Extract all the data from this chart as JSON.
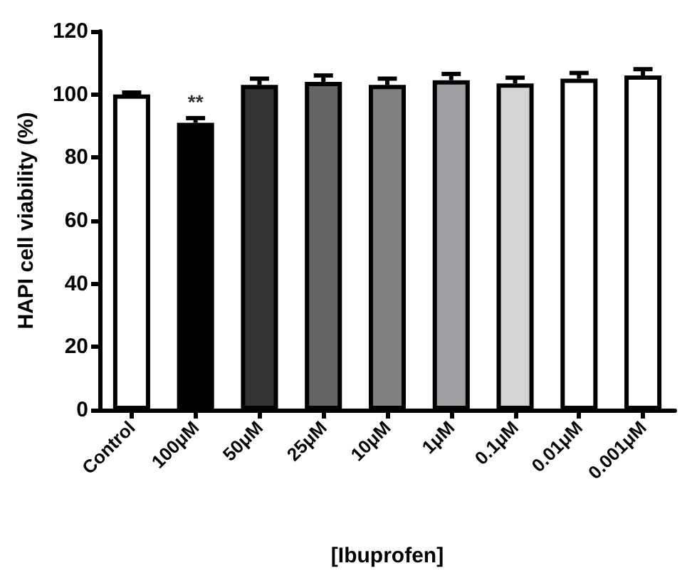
{
  "chart_data": {
    "type": "bar",
    "xlabel": "[Ibuprofen]",
    "ylabel": "HAPI cell viability (%)",
    "categories": [
      "Control",
      "100μM",
      "50μM",
      "25μM",
      "10μM",
      "1μM",
      "0.1μM",
      "0.01μM",
      "0.001μM"
    ],
    "values": [
      100,
      91,
      103,
      104,
      103,
      104.5,
      103.5,
      105,
      106
    ],
    "colors": [
      "#ffffff",
      "#000000",
      "#333333",
      "#646464",
      "#808080",
      "#a0a0a4",
      "#d4d4d4",
      "#ffffff",
      "#ffffff"
    ],
    "errors": [
      [
        100,
        100.6
      ],
      [
        91,
        92.5
      ],
      [
        103,
        105
      ],
      [
        104,
        106
      ],
      [
        103,
        105
      ],
      [
        104.5,
        106.5
      ],
      [
        103.5,
        105.3
      ],
      [
        105,
        106.8
      ],
      [
        106,
        108
      ]
    ],
    "annotations": [
      {
        "text": "**",
        "x": "100μM",
        "y": 93.5
      }
    ],
    "ylim": [
      0,
      120
    ],
    "yticks": [
      0,
      20,
      40,
      60,
      80,
      100,
      120
    ],
    "grid": false
  }
}
